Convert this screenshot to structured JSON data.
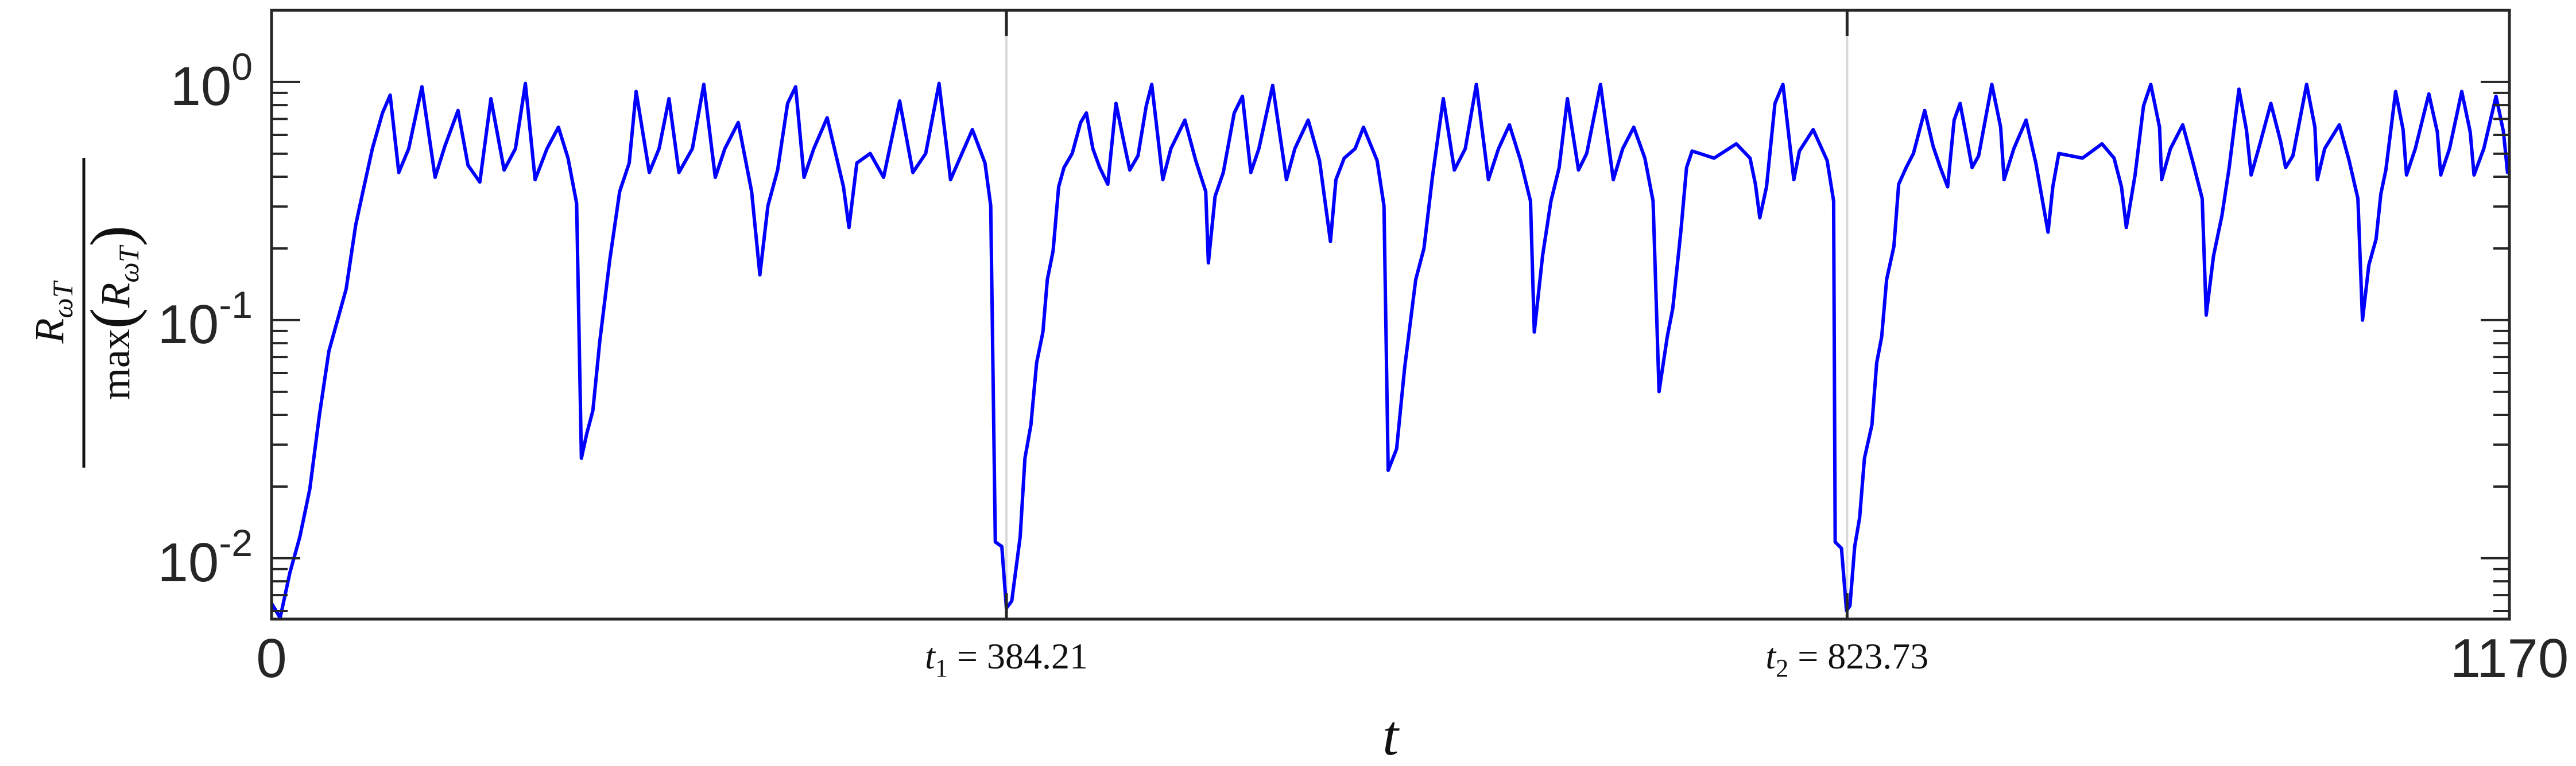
{
  "chart_data": {
    "type": "line",
    "title": "",
    "xlabel": "t",
    "ylabel": {
      "numerator": "R",
      "numerator_sub": "ωT",
      "denominator_fn": "max",
      "denominator_arg": "R",
      "denominator_sub": "ωT"
    },
    "xlim": [
      0,
      1170
    ],
    "ylim": [
      0.00555,
      2
    ],
    "yscale": "log",
    "grid": false,
    "line_color": "#0000ff",
    "marker_line_color": "#d9d9d9",
    "x_ticks": [
      {
        "value": 0,
        "label": "0",
        "style": "plain"
      },
      {
        "value": 384.21,
        "label_var": "t",
        "label_sub": "1",
        "label_rest": " = 384.21",
        "style": "math"
      },
      {
        "value": 823.73,
        "label_var": "t",
        "label_sub": "2",
        "label_rest": " = 823.73",
        "style": "math"
      },
      {
        "value": 1170,
        "label": "1170",
        "style": "plain"
      }
    ],
    "y_ticks": [
      {
        "value": 1,
        "base": "10",
        "exp": "0"
      },
      {
        "value": 0.1,
        "base": "10",
        "exp": "-1"
      },
      {
        "value": 0.01,
        "base": "10",
        "exp": "-2"
      }
    ],
    "vertical_markers": [
      384.21,
      823.73
    ],
    "series": [
      {
        "points": [
          [
            0,
            0.00646
          ],
          [
            4.5,
            0.00562
          ],
          [
            9.6,
            0.00871
          ],
          [
            14.8,
            0.0123
          ],
          [
            20,
            0.0195
          ],
          [
            25,
            0.0398
          ],
          [
            30,
            0.0741
          ],
          [
            35.5,
            0.107
          ],
          [
            39,
            0.135
          ],
          [
            44,
            0.251
          ],
          [
            47.5,
            0.339
          ],
          [
            52.7,
            0.525
          ],
          [
            58,
            0.741
          ],
          [
            62,
            0.881
          ],
          [
            66.5,
            0.417
          ],
          [
            71.7,
            0.525
          ],
          [
            78.6,
            0.955
          ],
          [
            85.5,
            0.398
          ],
          [
            90.6,
            0.537
          ],
          [
            97.5,
            0.759
          ],
          [
            102.7,
            0.447
          ],
          [
            108.9,
            0.38
          ],
          [
            114.7,
            0.851
          ],
          [
            121.6,
            0.427
          ],
          [
            127.5,
            0.525
          ],
          [
            132.7,
            0.986
          ],
          [
            137.8,
            0.389
          ],
          [
            144,
            0.525
          ],
          [
            150,
            0.646
          ],
          [
            155,
            0.479
          ],
          [
            159.5,
            0.309
          ],
          [
            162,
            0.0263
          ],
          [
            164.7,
            0.0331
          ],
          [
            168,
            0.0417
          ],
          [
            171.6,
            0.0813
          ],
          [
            176.8,
            0.178
          ],
          [
            182,
            0.347
          ],
          [
            187,
            0.457
          ],
          [
            190.6,
            0.912
          ],
          [
            197.5,
            0.417
          ],
          [
            202.6,
            0.525
          ],
          [
            207.8,
            0.851
          ],
          [
            213,
            0.417
          ],
          [
            220,
            0.525
          ],
          [
            226,
            0.977
          ],
          [
            232,
            0.398
          ],
          [
            237,
            0.525
          ],
          [
            244,
            0.676
          ],
          [
            251,
            0.347
          ],
          [
            255.3,
            0.155
          ],
          [
            259.5,
            0.302
          ],
          [
            264.6,
            0.427
          ],
          [
            269.8,
            0.813
          ],
          [
            274,
            0.955
          ],
          [
            278.4,
            0.398
          ],
          [
            283.5,
            0.525
          ],
          [
            290.5,
            0.708
          ],
          [
            299,
            0.363
          ],
          [
            301.9,
            0.245
          ],
          [
            306,
            0.457
          ],
          [
            313,
            0.501
          ],
          [
            320,
            0.398
          ],
          [
            328.4,
            0.832
          ],
          [
            335.3,
            0.417
          ],
          [
            342,
            0.501
          ],
          [
            349,
            0.986
          ],
          [
            355,
            0.389
          ],
          [
            366.4,
            0.631
          ],
          [
            373,
            0.457
          ],
          [
            376,
            0.302
          ],
          [
            378.4,
            0.0117
          ],
          [
            381.8,
            0.0112
          ],
          [
            384.2,
            0.00617
          ],
          [
            387,
            0.00661
          ],
          [
            391.4,
            0.0123
          ],
          [
            393.9,
            0.0263
          ],
          [
            397,
            0.0363
          ],
          [
            400,
            0.0661
          ],
          [
            403.3,
            0.0891
          ],
          [
            405.6,
            0.148
          ],
          [
            408.6,
            0.195
          ],
          [
            411.5,
            0.363
          ],
          [
            414.3,
            0.437
          ],
          [
            418.6,
            0.501
          ],
          [
            423,
            0.676
          ],
          [
            426,
            0.741
          ],
          [
            429.4,
            0.525
          ],
          [
            433,
            0.437
          ],
          [
            437.2,
            0.372
          ],
          [
            441.5,
            0.813
          ],
          [
            445.8,
            0.55
          ],
          [
            448.7,
            0.427
          ],
          [
            453,
            0.49
          ],
          [
            457.3,
            0.794
          ],
          [
            460.2,
            0.977
          ],
          [
            466,
            0.389
          ],
          [
            470.2,
            0.525
          ],
          [
            477.5,
            0.692
          ],
          [
            483.2,
            0.468
          ],
          [
            488.4,
            0.347
          ],
          [
            489.8,
            0.174
          ],
          [
            493.3,
            0.331
          ],
          [
            497.6,
            0.417
          ],
          [
            503.3,
            0.741
          ],
          [
            507.6,
            0.871
          ],
          [
            512,
            0.417
          ],
          [
            516.2,
            0.525
          ],
          [
            523.4,
            0.968
          ],
          [
            530.6,
            0.389
          ],
          [
            535,
            0.525
          ],
          [
            542,
            0.692
          ],
          [
            547.9,
            0.468
          ],
          [
            553.6,
            0.214
          ],
          [
            556.5,
            0.389
          ],
          [
            560.8,
            0.479
          ],
          [
            566.5,
            0.525
          ],
          [
            570.9,
            0.646
          ],
          [
            578,
            0.468
          ],
          [
            581.6,
            0.302
          ],
          [
            583.8,
            0.0234
          ],
          [
            588.2,
            0.0288
          ],
          [
            592.4,
            0.0631
          ],
          [
            598.2,
            0.148
          ],
          [
            602.5,
            0.2
          ],
          [
            606.9,
            0.398
          ],
          [
            612.6,
            0.851
          ],
          [
            618.4,
            0.427
          ],
          [
            624.1,
            0.525
          ],
          [
            629.9,
            0.977
          ],
          [
            636.2,
            0.389
          ],
          [
            641.5,
            0.525
          ],
          [
            647.2,
            0.661
          ],
          [
            653,
            0.468
          ],
          [
            658.2,
            0.316
          ],
          [
            660.2,
            0.0891
          ],
          [
            664.5,
            0.186
          ],
          [
            668.9,
            0.316
          ],
          [
            673.2,
            0.437
          ],
          [
            677.5,
            0.851
          ],
          [
            683.3,
            0.427
          ],
          [
            687.6,
            0.501
          ],
          [
            694.8,
            0.977
          ],
          [
            701.5,
            0.389
          ],
          [
            706.4,
            0.525
          ],
          [
            712.2,
            0.646
          ],
          [
            718,
            0.479
          ],
          [
            722.3,
            0.316
          ],
          [
            725.4,
            0.0501
          ],
          [
            729.7,
            0.0851
          ],
          [
            732.6,
            0.112
          ],
          [
            736.9,
            0.24
          ],
          [
            739.8,
            0.437
          ],
          [
            742.7,
            0.513
          ],
          [
            754.2,
            0.479
          ],
          [
            765.8,
            0.55
          ],
          [
            773,
            0.479
          ],
          [
            775.8,
            0.372
          ],
          [
            778.1,
            0.269
          ],
          [
            781.6,
            0.363
          ],
          [
            786,
            0.813
          ],
          [
            790.2,
            0.977
          ],
          [
            795.9,
            0.389
          ],
          [
            798.8,
            0.513
          ],
          [
            806,
            0.631
          ],
          [
            813.3,
            0.468
          ],
          [
            816.7,
            0.316
          ],
          [
            817.5,
            0.0117
          ],
          [
            820.8,
            0.011
          ],
          [
            823.4,
            0.00603
          ],
          [
            825.2,
            0.00631
          ],
          [
            827.7,
            0.0112
          ],
          [
            830.3,
            0.0148
          ],
          [
            832.8,
            0.0263
          ],
          [
            836.7,
            0.0363
          ],
          [
            839.2,
            0.0661
          ],
          [
            841.8,
            0.0851
          ],
          [
            844.4,
            0.148
          ],
          [
            848.2,
            0.204
          ],
          [
            850.7,
            0.372
          ],
          [
            854.6,
            0.437
          ],
          [
            858.4,
            0.501
          ],
          [
            864.3,
            0.759
          ],
          [
            868.7,
            0.537
          ],
          [
            872.5,
            0.437
          ],
          [
            876.3,
            0.363
          ],
          [
            879.7,
            0.692
          ],
          [
            882.8,
            0.813
          ],
          [
            886.6,
            0.562
          ],
          [
            889.1,
            0.437
          ],
          [
            892.5,
            0.49
          ],
          [
            899.4,
            0.977
          ],
          [
            904,
            0.646
          ],
          [
            905.8,
            0.389
          ],
          [
            910.9,
            0.525
          ],
          [
            917.3,
            0.692
          ],
          [
            922.4,
            0.457
          ],
          [
            928.8,
            0.234
          ],
          [
            931.3,
            0.363
          ],
          [
            934.4,
            0.501
          ],
          [
            946.8,
            0.479
          ],
          [
            957,
            0.55
          ],
          [
            963.3,
            0.479
          ],
          [
            967.2,
            0.363
          ],
          [
            969.7,
            0.245
          ],
          [
            974.3,
            0.407
          ],
          [
            978.7,
            0.794
          ],
          [
            982.5,
            0.977
          ],
          [
            987.1,
            0.646
          ],
          [
            988.2,
            0.389
          ],
          [
            992.8,
            0.525
          ],
          [
            999.2,
            0.661
          ],
          [
            1004.3,
            0.468
          ],
          [
            1009.4,
            0.324
          ],
          [
            1011.5,
            0.105
          ],
          [
            1015.3,
            0.186
          ],
          [
            1019.7,
            0.275
          ],
          [
            1023.5,
            0.437
          ],
          [
            1028.6,
            0.933
          ],
          [
            1032.5,
            0.631
          ],
          [
            1035,
            0.407
          ],
          [
            1038.9,
            0.525
          ],
          [
            1045.3,
            0.813
          ],
          [
            1050.4,
            0.562
          ],
          [
            1053,
            0.437
          ],
          [
            1056.8,
            0.49
          ],
          [
            1064,
            0.977
          ],
          [
            1068.3,
            0.646
          ],
          [
            1069.6,
            0.389
          ],
          [
            1073.4,
            0.525
          ],
          [
            1081.1,
            0.661
          ],
          [
            1086.2,
            0.468
          ],
          [
            1090.8,
            0.324
          ],
          [
            1093.2,
            0.1
          ],
          [
            1096.5,
            0.17
          ],
          [
            1100.3,
            0.219
          ],
          [
            1102.8,
            0.339
          ],
          [
            1105.4,
            0.427
          ],
          [
            1110.5,
            0.912
          ],
          [
            1114.4,
            0.631
          ],
          [
            1116.2,
            0.407
          ],
          [
            1120.8,
            0.525
          ],
          [
            1127.9,
            0.891
          ],
          [
            1132.3,
            0.617
          ],
          [
            1134.1,
            0.407
          ],
          [
            1138.7,
            0.525
          ],
          [
            1145.1,
            0.912
          ],
          [
            1149.5,
            0.617
          ],
          [
            1151.5,
            0.407
          ],
          [
            1156.6,
            0.525
          ],
          [
            1163,
            0.871
          ],
          [
            1166.9,
            0.617
          ],
          [
            1169,
            0.417
          ],
          [
            1170,
            0.427
          ]
        ]
      }
    ]
  }
}
